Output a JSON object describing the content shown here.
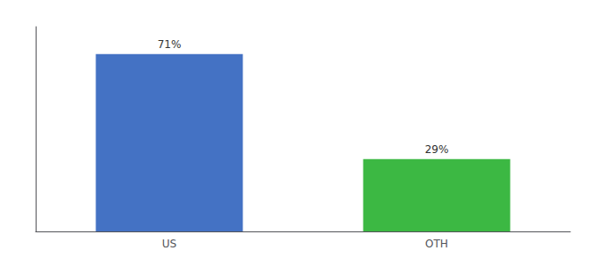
{
  "chart_data": {
    "type": "bar",
    "categories": [
      "US",
      "OTH"
    ],
    "values": [
      71,
      29
    ],
    "value_labels": [
      "71%",
      "29%"
    ],
    "colors": [
      "#4472c4",
      "#3cb843"
    ],
    "ylim": [
      0,
      82
    ],
    "grid": false,
    "data_labels": true,
    "tick_labels": "x"
  }
}
